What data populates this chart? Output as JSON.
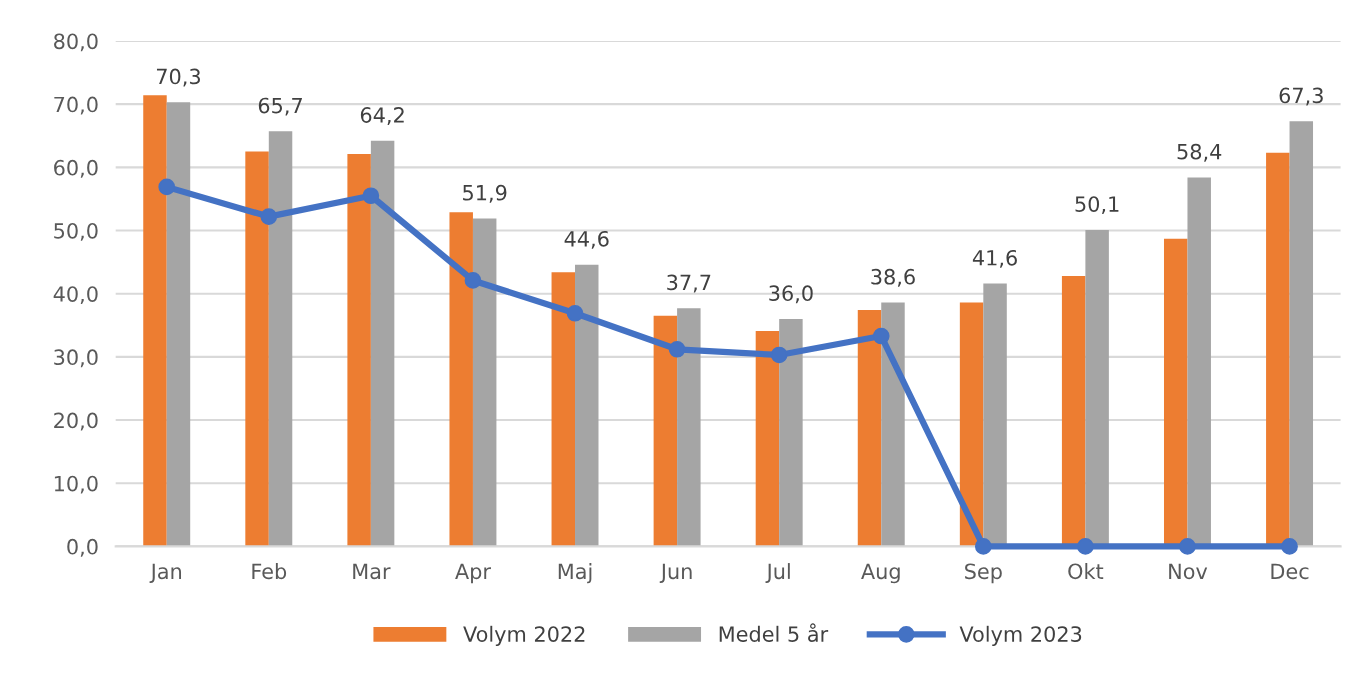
{
  "chart_data": {
    "type": "bar",
    "categories": [
      "Jan",
      "Feb",
      "Mar",
      "Apr",
      "Maj",
      "Jun",
      "Jul",
      "Aug",
      "Sep",
      "Okt",
      "Nov",
      "Dec"
    ],
    "series": [
      {
        "name": "Volym 2022",
        "color": "#ed7d31",
        "values": [
          71.4,
          62.5,
          62.1,
          52.9,
          43.4,
          36.5,
          34.1,
          37.4,
          38.6,
          42.8,
          48.7,
          62.3
        ]
      },
      {
        "name": "Medel 5 år",
        "color": "#a5a5a5",
        "values": [
          70.3,
          65.7,
          64.2,
          51.9,
          44.6,
          37.7,
          36.0,
          38.6,
          41.6,
          50.1,
          58.4,
          67.3
        ],
        "value_labels": [
          "70,3",
          "65,7",
          "64,2",
          "51,9",
          "44,6",
          "37,7",
          "36,0",
          "38,6",
          "41,6",
          "50,1",
          "58,4",
          "67,3"
        ]
      },
      {
        "name": "Volym 2023",
        "type": "line",
        "color": "#4472c4",
        "marker": "circle",
        "values": [
          56.9,
          52.2,
          55.5,
          42.1,
          36.9,
          31.2,
          30.3,
          33.3,
          0,
          0,
          0,
          0
        ]
      }
    ],
    "ylim": [
      0,
      80
    ],
    "yticks": [
      {
        "value": 0,
        "label": "0,0"
      },
      {
        "value": 10,
        "label": "10,0"
      },
      {
        "value": 20,
        "label": "20,0"
      },
      {
        "value": 30,
        "label": "30,0"
      },
      {
        "value": 40,
        "label": "40,0"
      },
      {
        "value": 50,
        "label": "50,0"
      },
      {
        "value": 60,
        "label": "60,0"
      },
      {
        "value": 70,
        "label": "70,0"
      },
      {
        "value": 80,
        "label": "80,0"
      }
    ],
    "grid": "y",
    "legend": "bottom"
  }
}
